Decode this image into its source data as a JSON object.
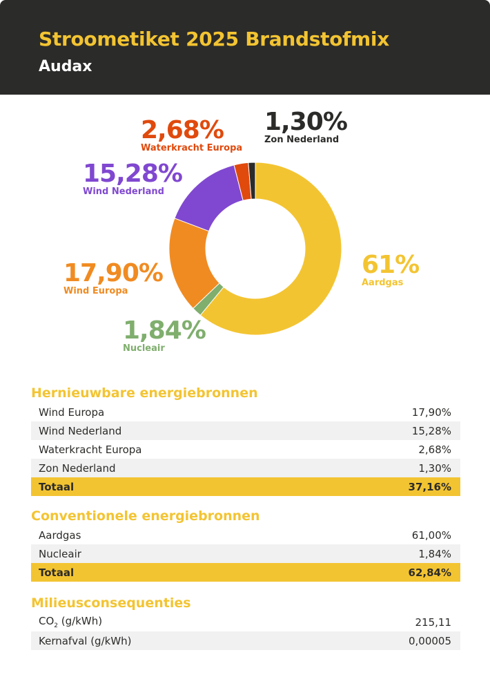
{
  "header": {
    "title": "Stroometiket 2025 Brandstofmix",
    "subtitle": "Audax"
  },
  "chart_data": {
    "type": "pie",
    "variant": "donut",
    "title": "",
    "slices": [
      {
        "label": "Aardgas",
        "value": 61.0,
        "display": "61%",
        "color": "#f3c432"
      },
      {
        "label": "Nucleair",
        "value": 1.84,
        "display": "1,84%",
        "color": "#7fae6d"
      },
      {
        "label": "Wind Europa",
        "value": 17.9,
        "display": "17,90%",
        "color": "#f08b22"
      },
      {
        "label": "Wind Nederland",
        "value": 15.28,
        "display": "15,28%",
        "color": "#8048d0"
      },
      {
        "label": "Waterkracht Europa",
        "value": 2.68,
        "display": "2,68%",
        "color": "#e04a0d"
      },
      {
        "label": "Zon Nederland",
        "value": 1.3,
        "display": "1,30%",
        "color": "#2b2b29"
      }
    ]
  },
  "renewable": {
    "title": "Hernieuwbare energiebronnen",
    "rows": [
      {
        "label": "Wind Europa",
        "value": "17,90%"
      },
      {
        "label": "Wind Nederland",
        "value": "15,28%"
      },
      {
        "label": "Waterkracht Europa",
        "value": "2,68%"
      },
      {
        "label": "Zon Nederland",
        "value": "1,30%"
      }
    ],
    "total_label": "Totaal",
    "total_value": "37,16%"
  },
  "conventional": {
    "title": "Conventionele energiebronnen",
    "rows": [
      {
        "label": "Aardgas",
        "value": "61,00%"
      },
      {
        "label": "Nucleair",
        "value": "1,84%"
      }
    ],
    "total_label": "Totaal",
    "total_value": "62,84%"
  },
  "environment": {
    "title": "Milieusconsequenties",
    "co2_prefix": "CO",
    "co2_sub": "2",
    "co2_suffix": " (g/kWh)",
    "co2_value": "215,11",
    "waste_label": "Kernafval (g/kWh)",
    "waste_value": "0,00005"
  }
}
